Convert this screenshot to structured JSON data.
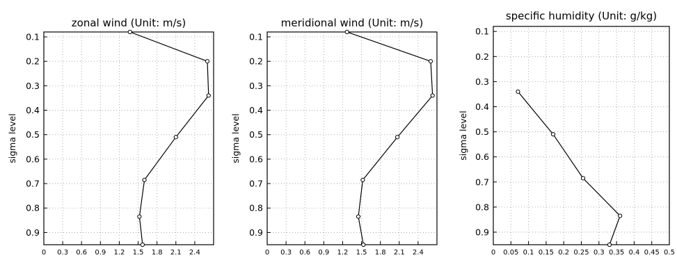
{
  "chart_data": [
    {
      "type": "line",
      "title": "zonal wind (Unit: m/s)",
      "ylabel": "sigma level",
      "xlabel": "",
      "xlim": [
        0,
        2.7
      ],
      "ylim": [
        0.95,
        0.08
      ],
      "y_reversed": true,
      "xticks": [
        "0",
        "0.3",
        "0.6",
        "0.9",
        "1.2",
        "1.5",
        "1.8",
        "2.1",
        "2.4"
      ],
      "yticks": [
        "0.1",
        "0.2",
        "0.3",
        "0.4",
        "0.5",
        "0.6",
        "0.7",
        "0.8",
        "0.9"
      ],
      "grid": true,
      "series": [
        {
          "x": [
            1.37,
            2.6,
            2.62,
            2.1,
            1.6,
            1.52,
            1.57
          ],
          "y": [
            0.08,
            0.2,
            0.34,
            0.51,
            0.685,
            0.835,
            0.95
          ]
        }
      ]
    },
    {
      "type": "line",
      "title": "meridional wind (Unit: m/s)",
      "ylabel": "sigma level",
      "xlabel": "",
      "xlim": [
        0,
        2.7
      ],
      "ylim": [
        0.95,
        0.08
      ],
      "y_reversed": true,
      "xticks": [
        "0",
        "0.3",
        "0.6",
        "0.9",
        "1.2",
        "1.5",
        "1.8",
        "2.1",
        "2.4"
      ],
      "yticks": [
        "0.1",
        "0.2",
        "0.3",
        "0.4",
        "0.5",
        "0.6",
        "0.7",
        "0.8",
        "0.9"
      ],
      "grid": true,
      "series": [
        {
          "x": [
            1.27,
            2.6,
            2.63,
            2.07,
            1.52,
            1.45,
            1.53
          ],
          "y": [
            0.08,
            0.2,
            0.34,
            0.51,
            0.685,
            0.835,
            0.95
          ]
        }
      ]
    },
    {
      "type": "line",
      "title": "specific humidity (Unit: g/kg)",
      "ylabel": "sigma level",
      "xlabel": "",
      "xlim": [
        0,
        0.5
      ],
      "ylim": [
        0.95,
        0.08
      ],
      "y_reversed": true,
      "xticks": [
        "0",
        "0.05",
        "0.1",
        "0.15",
        "0.2",
        "0.25",
        "0.3",
        "0.35",
        "0.4",
        "0.45",
        "0.5"
      ],
      "yticks": [
        "0.1",
        "0.2",
        "0.3",
        "0.4",
        "0.5",
        "0.6",
        "0.7",
        "0.8",
        "0.9"
      ],
      "grid": true,
      "series": [
        {
          "x": [
            0.07,
            0.17,
            0.255,
            0.36,
            0.33
          ],
          "y": [
            0.34,
            0.51,
            0.685,
            0.835,
            0.95
          ]
        }
      ]
    }
  ]
}
